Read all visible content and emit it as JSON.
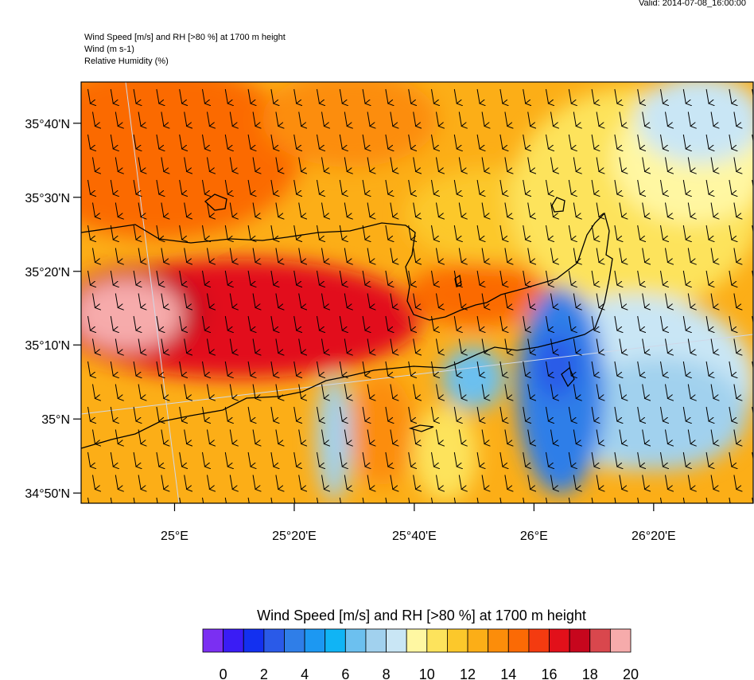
{
  "valid_time": "Valid: 2014-07-08_16:00:00",
  "header": {
    "line1": "Wind Speed [m/s] and RH [>80 %] at 1700 m height",
    "line2": "Wind   (m s-1)",
    "line3": "Relative Humidity   (%)"
  },
  "colorbar": {
    "title": "Wind Speed [m/s] and RH [>80 %] at 1700 m height",
    "colors": [
      "#7b2ff2",
      "#3a1cf5",
      "#1330f0",
      "#2a5ae8",
      "#2f7ee8",
      "#1c98f2",
      "#10b4f5",
      "#6cc0ef",
      "#a1d1ee",
      "#c9e6f5",
      "#fff7a2",
      "#fde35c",
      "#fcc82b",
      "#fcae17",
      "#fc8d0a",
      "#fb6a05",
      "#f43b10",
      "#e2101a",
      "#c7061d",
      "#d9474d",
      "#f6abab"
    ],
    "tick_labels": [
      "0",
      "2",
      "4",
      "6",
      "8",
      "10",
      "12",
      "14",
      "16",
      "18",
      "20"
    ]
  },
  "chart_data": {
    "type": "heatmap",
    "title": "Wind Speed [m/s] and RH [>80 %] at 1700 m height",
    "x_tick_labels": [
      "25°E",
      "25°20'E",
      "25°40'E",
      "26°E",
      "26°20'E"
    ],
    "y_tick_labels": [
      "35°40'N",
      "35°30'N",
      "35°20'N",
      "35°10'N",
      "35°N",
      "34°50'N"
    ],
    "x_ticks_deg": [
      25.0,
      25.333,
      25.667,
      26.0,
      26.333
    ],
    "y_ticks_deg": [
      35.667,
      35.5,
      35.333,
      35.167,
      35.0,
      34.833
    ],
    "lon_range": [
      24.74,
      26.61
    ],
    "lat_range": [
      34.81,
      35.76
    ],
    "wind_direction": "north-northwesterly (arrows pointing south)",
    "wind_speed_range_ms": [
      0,
      20
    ],
    "features": [
      {
        "name": "strong wind core",
        "speed_ms": 20,
        "location": "west, ~35°15'N 24°50'E"
      },
      {
        "name": "weak wind pocket",
        "speed_ms": 3,
        "location": "~35°06'N 26°03'E"
      }
    ]
  }
}
